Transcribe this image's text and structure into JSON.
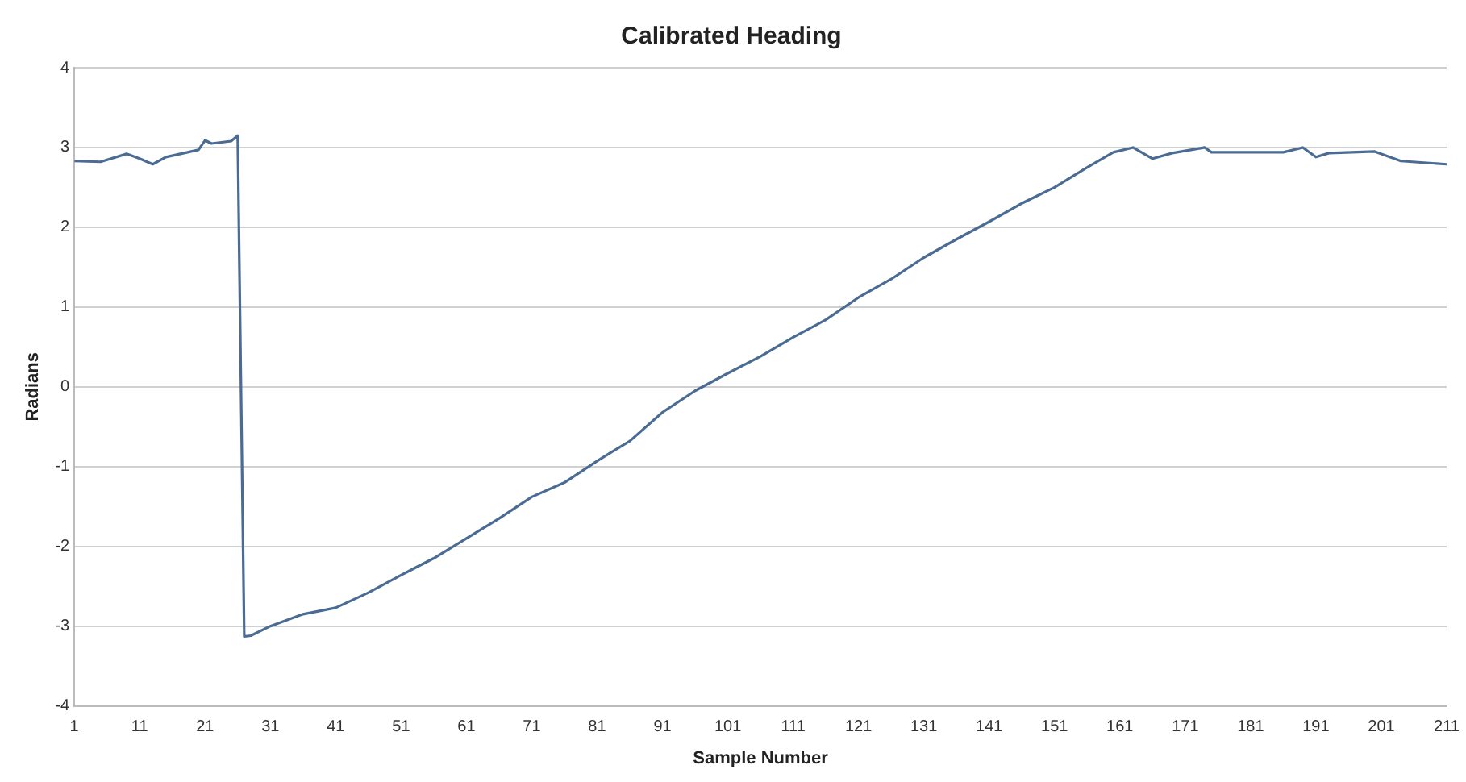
{
  "chart_data": {
    "type": "line",
    "title": "Calibrated Heading",
    "xlabel": "Sample Number",
    "ylabel": "Radians",
    "xlim": [
      1,
      211
    ],
    "xticks": [
      1,
      11,
      21,
      31,
      41,
      51,
      61,
      71,
      81,
      91,
      101,
      111,
      121,
      131,
      141,
      151,
      161,
      171,
      181,
      191,
      201,
      211
    ],
    "ylim": [
      -4,
      4
    ],
    "yticks": [
      -4,
      -3,
      -2,
      -1,
      0,
      1,
      2,
      3,
      4
    ],
    "grid": "y",
    "legend": false,
    "marker": "none",
    "line_style": "solid",
    "series": [
      {
        "color": "#4a6b94",
        "x": [
          1,
          5,
          9,
          11,
          13,
          15,
          20,
          21,
          22,
          25,
          26,
          27,
          28,
          31,
          36,
          41,
          46,
          51,
          56,
          61,
          66,
          71,
          76,
          81,
          86,
          91,
          96,
          101,
          106,
          111,
          116,
          121,
          126,
          131,
          136,
          141,
          146,
          151,
          156,
          160,
          163,
          166,
          169,
          174,
          175,
          186,
          189,
          191,
          193,
          200,
          204,
          211
        ],
        "values": [
          2.83,
          2.82,
          2.92,
          2.86,
          2.79,
          2.88,
          2.97,
          3.09,
          3.05,
          3.08,
          3.15,
          -3.13,
          -3.12,
          -3.0,
          -2.85,
          -2.77,
          -2.58,
          -2.36,
          -2.15,
          -1.9,
          -1.65,
          -1.38,
          -1.2,
          -0.93,
          -0.68,
          -0.32,
          -0.05,
          0.17,
          0.38,
          0.62,
          0.84,
          1.12,
          1.35,
          1.62,
          1.85,
          2.07,
          2.3,
          2.5,
          2.75,
          2.94,
          3.0,
          2.86,
          2.93,
          3.0,
          2.94,
          2.94,
          3.0,
          2.88,
          2.93,
          2.95,
          2.83,
          2.79
        ]
      }
    ]
  }
}
